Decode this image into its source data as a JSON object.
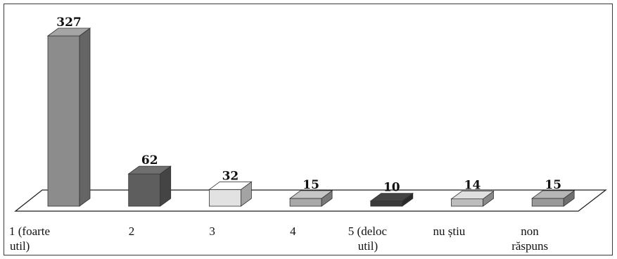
{
  "chart_data": {
    "type": "bar",
    "style": "3d-column",
    "categories": [
      [
        "1 (foarte",
        "util)"
      ],
      [
        "2"
      ],
      [
        "3"
      ],
      [
        "4"
      ],
      [
        "5 (deloc",
        "util)"
      ],
      [
        "nu știu"
      ],
      [
        "non",
        "răspuns"
      ]
    ],
    "values": [
      327,
      62,
      32,
      15,
      10,
      14,
      15
    ],
    "bar_colors": [
      "#8c8c8c",
      "#5e5e5e",
      "#e2e2e2",
      "#a8a8a8",
      "#3a3a3a",
      "#bdbdbd",
      "#9a9a9a"
    ],
    "ylim": [
      0,
      327
    ],
    "grid": false,
    "legend": "none",
    "data_labels": true
  }
}
